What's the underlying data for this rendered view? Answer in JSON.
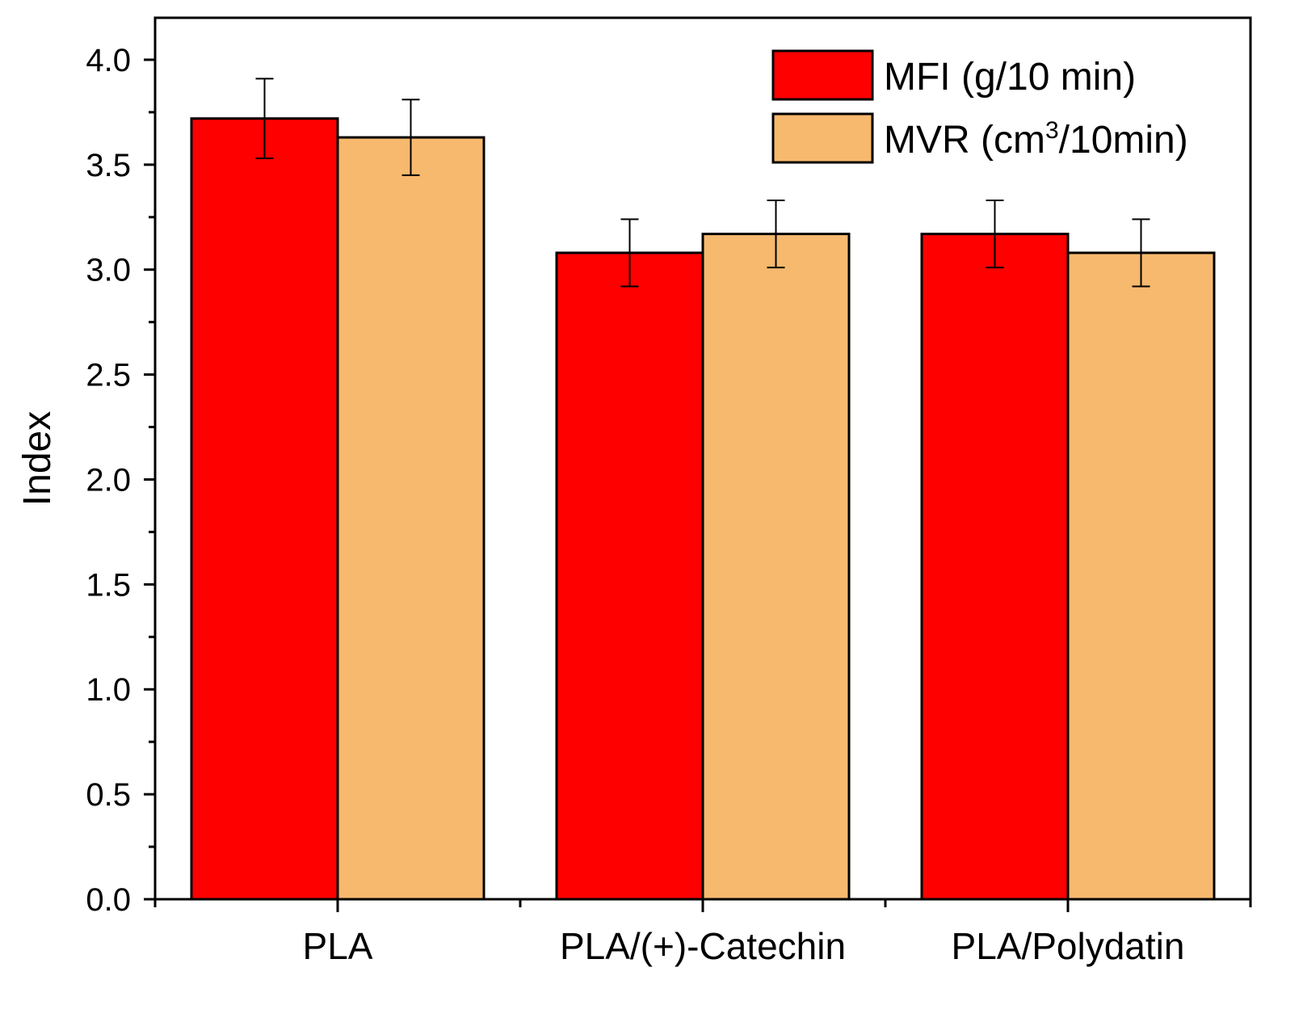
{
  "chart_data": {
    "type": "bar",
    "title": "",
    "xlabel": "",
    "ylabel": "Index",
    "ylim": [
      0,
      4.2
    ],
    "yticks": [
      "0.0",
      "0.5",
      "1.0",
      "1.5",
      "2.0",
      "2.5",
      "3.0",
      "3.5",
      "4.0"
    ],
    "categories": [
      "PLA",
      "PLA/(+)-Catechin",
      "PLA/Polydatin"
    ],
    "series": [
      {
        "name": "MFI (g/10 min)",
        "color": "#ff0000",
        "values": [
          3.72,
          3.08,
          3.17
        ],
        "errors": [
          0.19,
          0.16,
          0.16
        ]
      },
      {
        "name": "MVR (cm3/10min)",
        "legend_parts": {
          "before": "MVR (cm",
          "sup": "3",
          "after": "/10min)"
        },
        "color": "#f6b96e",
        "values": [
          3.63,
          3.17,
          3.08
        ],
        "errors": [
          0.18,
          0.16,
          0.16
        ]
      }
    ],
    "legend_position": "top-right",
    "grid": false
  }
}
